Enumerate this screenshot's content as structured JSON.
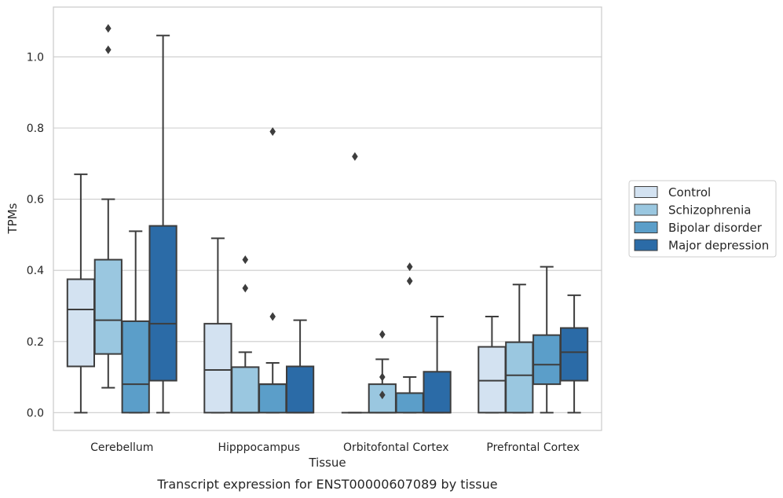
{
  "caption": "Transcript expression for ENST00000607089 by tissue",
  "chart_data": {
    "type": "box",
    "xlabel": "Tissue",
    "ylabel": "TPMs",
    "ylim": [
      -0.05,
      1.14
    ],
    "yticks": [
      0.0,
      0.2,
      0.4,
      0.6,
      0.8,
      1.0
    ],
    "ytick_labels": [
      "0.0",
      "0.2",
      "0.4",
      "0.6",
      "0.8",
      "1.0"
    ],
    "grid": "horizontal",
    "legend_position": "right",
    "categories": [
      "Cerebellum",
      "Hipppocampus",
      "Orbitofontal Cortex",
      "Prefrontal Cortex"
    ],
    "series": [
      {
        "name": "Control",
        "color": "#d3e2f1",
        "boxes": [
          {
            "whislo": 0.0,
            "q1": 0.13,
            "med": 0.29,
            "q3": 0.375,
            "whishi": 0.67,
            "fliers": []
          },
          {
            "whislo": 0.0,
            "q1": 0.0,
            "med": 0.12,
            "q3": 0.25,
            "whishi": 0.49,
            "fliers": []
          },
          {
            "whislo": 0.0,
            "q1": 0.0,
            "med": 0.0,
            "q3": 0.0,
            "whishi": 0.0,
            "fliers": [
              0.72
            ]
          },
          {
            "whislo": 0.0,
            "q1": 0.0,
            "med": 0.09,
            "q3": 0.185,
            "whishi": 0.27,
            "fliers": []
          }
        ]
      },
      {
        "name": "Schizophrenia",
        "color": "#9ac7e0",
        "boxes": [
          {
            "whislo": 0.07,
            "q1": 0.165,
            "med": 0.26,
            "q3": 0.43,
            "whishi": 0.6,
            "fliers": [
              1.02,
              1.08
            ]
          },
          {
            "whislo": 0.0,
            "q1": 0.0,
            "med": 0.0,
            "q3": 0.128,
            "whishi": 0.17,
            "fliers": [
              0.35,
              0.43
            ]
          },
          {
            "whislo": 0.0,
            "q1": 0.0,
            "med": 0.0,
            "q3": 0.08,
            "whishi": 0.15,
            "fliers": [
              0.05,
              0.1,
              0.22
            ]
          },
          {
            "whislo": 0.0,
            "q1": 0.0,
            "med": 0.105,
            "q3": 0.198,
            "whishi": 0.36,
            "fliers": []
          }
        ]
      },
      {
        "name": "Bipolar disorder",
        "color": "#5b9ec9",
        "boxes": [
          {
            "whislo": 0.0,
            "q1": 0.0,
            "med": 0.08,
            "q3": 0.257,
            "whishi": 0.51,
            "fliers": []
          },
          {
            "whislo": 0.0,
            "q1": 0.0,
            "med": 0.08,
            "q3": 0.08,
            "whishi": 0.14,
            "fliers": [
              0.27,
              0.79
            ]
          },
          {
            "whislo": 0.0,
            "q1": 0.0,
            "med": 0.055,
            "q3": 0.055,
            "whishi": 0.1,
            "fliers": [
              0.37,
              0.41
            ]
          },
          {
            "whislo": 0.0,
            "q1": 0.08,
            "med": 0.135,
            "q3": 0.218,
            "whishi": 0.41,
            "fliers": []
          }
        ]
      },
      {
        "name": "Major depression",
        "color": "#2b6ba7",
        "boxes": [
          {
            "whislo": 0.0,
            "q1": 0.09,
            "med": 0.25,
            "q3": 0.525,
            "whishi": 1.06,
            "fliers": []
          },
          {
            "whislo": 0.0,
            "q1": 0.0,
            "med": 0.0,
            "q3": 0.13,
            "whishi": 0.26,
            "fliers": []
          },
          {
            "whislo": 0.0,
            "q1": 0.0,
            "med": 0.0,
            "q3": 0.115,
            "whishi": 0.27,
            "fliers": []
          },
          {
            "whislo": 0.0,
            "q1": 0.09,
            "med": 0.17,
            "q3": 0.238,
            "whishi": 0.33,
            "fliers": []
          }
        ]
      }
    ]
  }
}
